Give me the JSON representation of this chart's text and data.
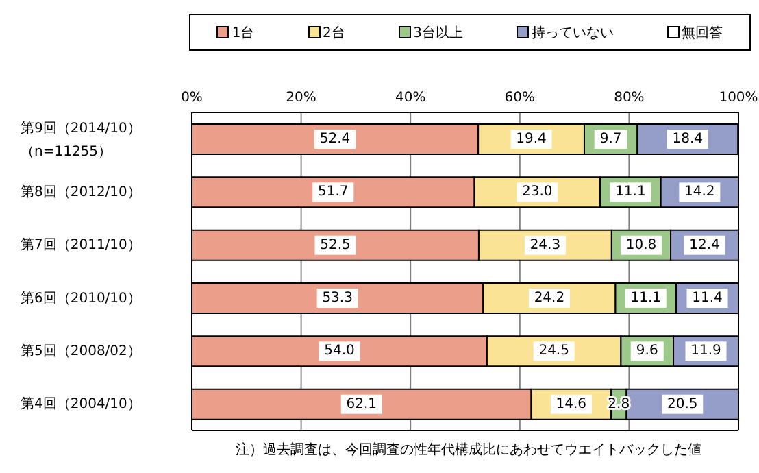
{
  "chart_data": {
    "type": "bar",
    "orientation": "horizontal",
    "stacked": true,
    "categories": [
      "第9回（2014/10）（n=11255）",
      "第8回（2012/10）",
      "第7回（2011/10）",
      "第6回（2010/10）",
      "第5回（2008/02）",
      "第4回（2004/10）"
    ],
    "series": [
      {
        "name": "1台",
        "color": "#eb9f8a",
        "values": [
          52.4,
          51.7,
          52.5,
          53.3,
          54.0,
          62.1
        ],
        "value_labels": [
          "52.4",
          "51.7",
          "52.5",
          "53.3",
          "54.0",
          "62.1"
        ]
      },
      {
        "name": "2台",
        "color": "#fbe395",
        "values": [
          19.4,
          23.0,
          24.3,
          24.2,
          24.5,
          14.6
        ],
        "value_labels": [
          "19.4",
          "23.0",
          "24.3",
          "24.2",
          "24.5",
          "14.6"
        ]
      },
      {
        "name": "3台以上",
        "color": "#9cc98a",
        "values": [
          9.7,
          11.1,
          10.8,
          11.1,
          9.6,
          2.8
        ],
        "value_labels": [
          "9.7",
          "11.1",
          "10.8",
          "11.1",
          "9.6",
          "2.8"
        ]
      },
      {
        "name": "持っていない",
        "color": "#959ec8",
        "values": [
          18.4,
          14.2,
          12.4,
          11.4,
          11.9,
          20.5
        ],
        "value_labels": [
          "18.4",
          "14.2",
          "12.4",
          "11.4",
          "11.9",
          "20.5"
        ]
      },
      {
        "name": "無回答",
        "color": "#ffffff",
        "values": [
          null,
          null,
          null,
          null,
          null,
          null
        ]
      }
    ],
    "xlim": [
      0,
      100
    ],
    "xticks": [
      {
        "value": 0,
        "label": "0%"
      },
      {
        "value": 20,
        "label": "20%"
      },
      {
        "value": 40,
        "label": "40%"
      },
      {
        "value": 60,
        "label": "60%"
      },
      {
        "value": 80,
        "label": "80%"
      },
      {
        "value": 100,
        "label": "100%"
      }
    ],
    "grid": "x",
    "legend": "top",
    "annotations": [
      "注）過去調査は、今回調査の性年代構成比にあわせてウエイトバックした値"
    ]
  }
}
